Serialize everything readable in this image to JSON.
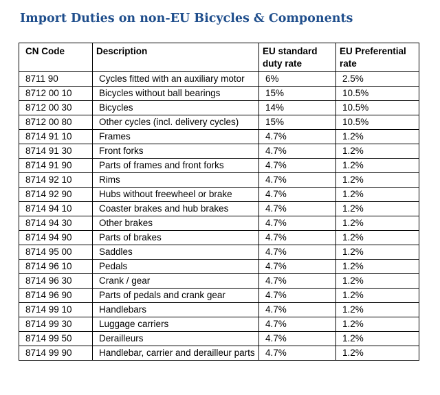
{
  "title": "Import Duties on non-EU Bicycles & Components",
  "table": {
    "headers": [
      "CN Code",
      "Description",
      "EU standard duty rate",
      "EU Preferential rate"
    ],
    "rows": [
      [
        "8711 90",
        "Cycles fitted with an auxiliary motor",
        "6%",
        "2.5%"
      ],
      [
        "8712 00 10",
        "Bicycles without ball bearings",
        "15%",
        "10.5%"
      ],
      [
        "8712 00 30",
        "Bicycles",
        "14%",
        "10.5%"
      ],
      [
        "8712 00 80",
        "Other cycles (incl. delivery cycles)",
        "15%",
        "10.5%"
      ],
      [
        "8714 91 10",
        "Frames",
        "4.7%",
        "1.2%"
      ],
      [
        "8714 91 30",
        "Front forks",
        "4.7%",
        "1.2%"
      ],
      [
        "8714 91 90",
        "Parts of frames and front forks",
        "4.7%",
        "1.2%"
      ],
      [
        "8714 92 10",
        "Rims",
        "4.7%",
        "1.2%"
      ],
      [
        "8714 92 90",
        "Hubs without freewheel or brake",
        "4.7%",
        "1.2%"
      ],
      [
        "8714 94 10",
        "Coaster brakes and hub brakes",
        "4.7%",
        "1.2%"
      ],
      [
        "8714 94 30",
        "Other brakes",
        "4.7%",
        "1.2%"
      ],
      [
        "8714 94 90",
        "Parts of brakes",
        "4.7%",
        "1.2%"
      ],
      [
        "8714 95 00",
        "Saddles",
        "4.7%",
        "1.2%"
      ],
      [
        "8714 96 10",
        "Pedals",
        "4.7%",
        "1.2%"
      ],
      [
        "8714 96 30",
        "Crank / gear",
        "4.7%",
        "1.2%"
      ],
      [
        "8714 96 90",
        "Parts of pedals and crank gear",
        "4.7%",
        "1.2%"
      ],
      [
        "8714 99 10",
        "Handlebars",
        "4.7%",
        "1.2%"
      ],
      [
        "8714 99 30",
        "Luggage carriers",
        "4.7%",
        "1.2%"
      ],
      [
        "8714 99 50",
        "Derailleurs",
        "4.7%",
        "1.2%"
      ],
      [
        "8714 99 90",
        "Handlebar, carrier and derailleur parts",
        "4.7%",
        "1.2%"
      ]
    ]
  },
  "colors": {
    "title": "#1f4e8c",
    "border": "#000000"
  }
}
